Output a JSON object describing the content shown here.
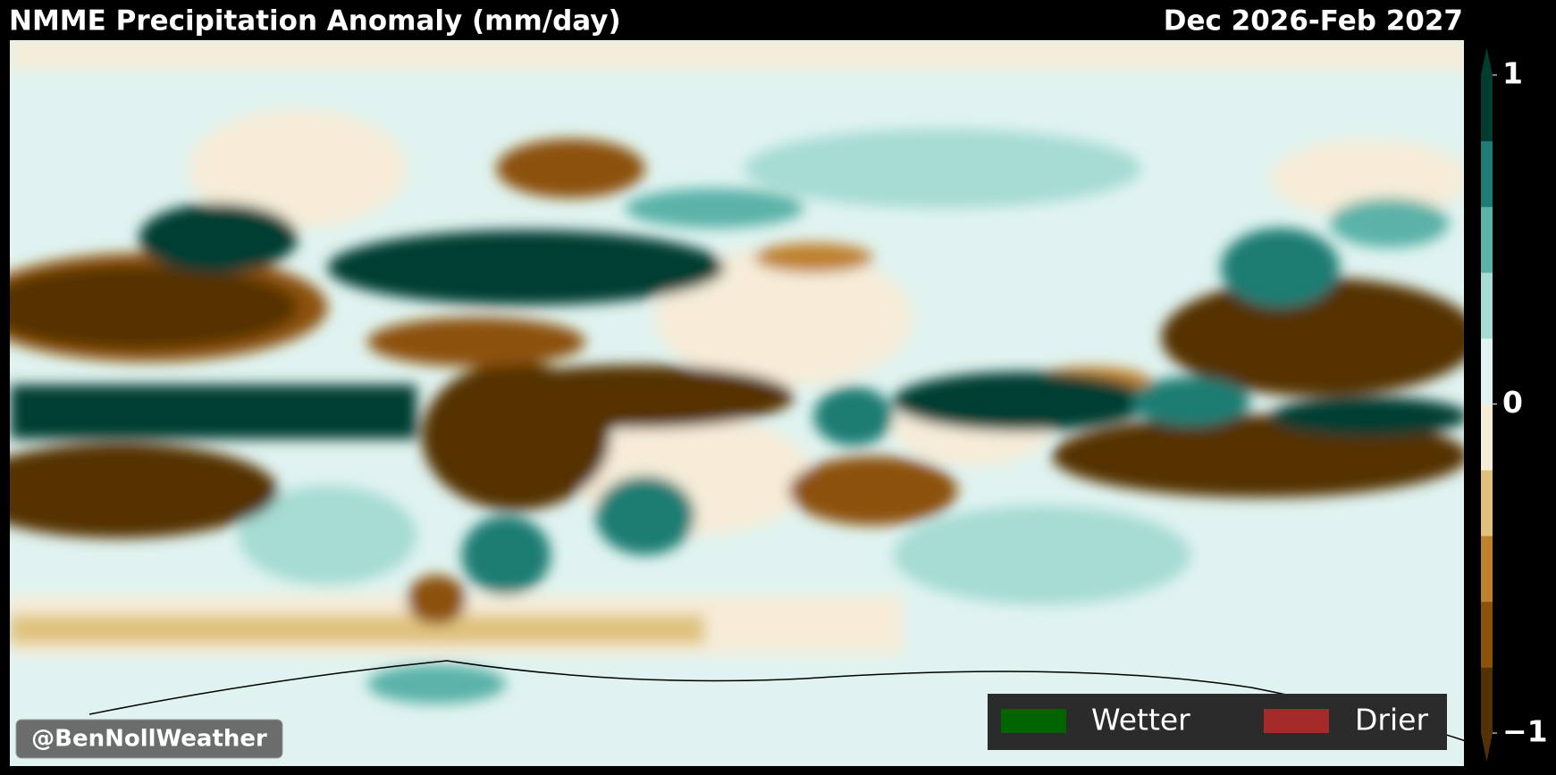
{
  "header": {
    "title": "NMME Precipitation Anomaly (mm/day)",
    "period": "Dec 2026-Feb 2027"
  },
  "colorbar": {
    "levels": [
      -1,
      -0.8,
      -0.6,
      -0.4,
      -0.2,
      0,
      0.2,
      0.4,
      0.6,
      0.8,
      1
    ],
    "colors": [
      "#543005",
      "#8c510a",
      "#bf812d",
      "#dfc27d",
      "#f6ecd8",
      "#e0f3f0",
      "#a6dcd3",
      "#5ab2a8",
      "#1b7d73",
      "#003c30"
    ],
    "ticks": [
      1,
      0,
      {
        "value": -1,
        "label": "−1"
      }
    ]
  },
  "legend": {
    "items": [
      {
        "label": "Wetter",
        "color": "#006400"
      },
      {
        "label": "Drier",
        "color": "#a52a2a"
      }
    ]
  },
  "watermark": "@BenNollWeather"
}
